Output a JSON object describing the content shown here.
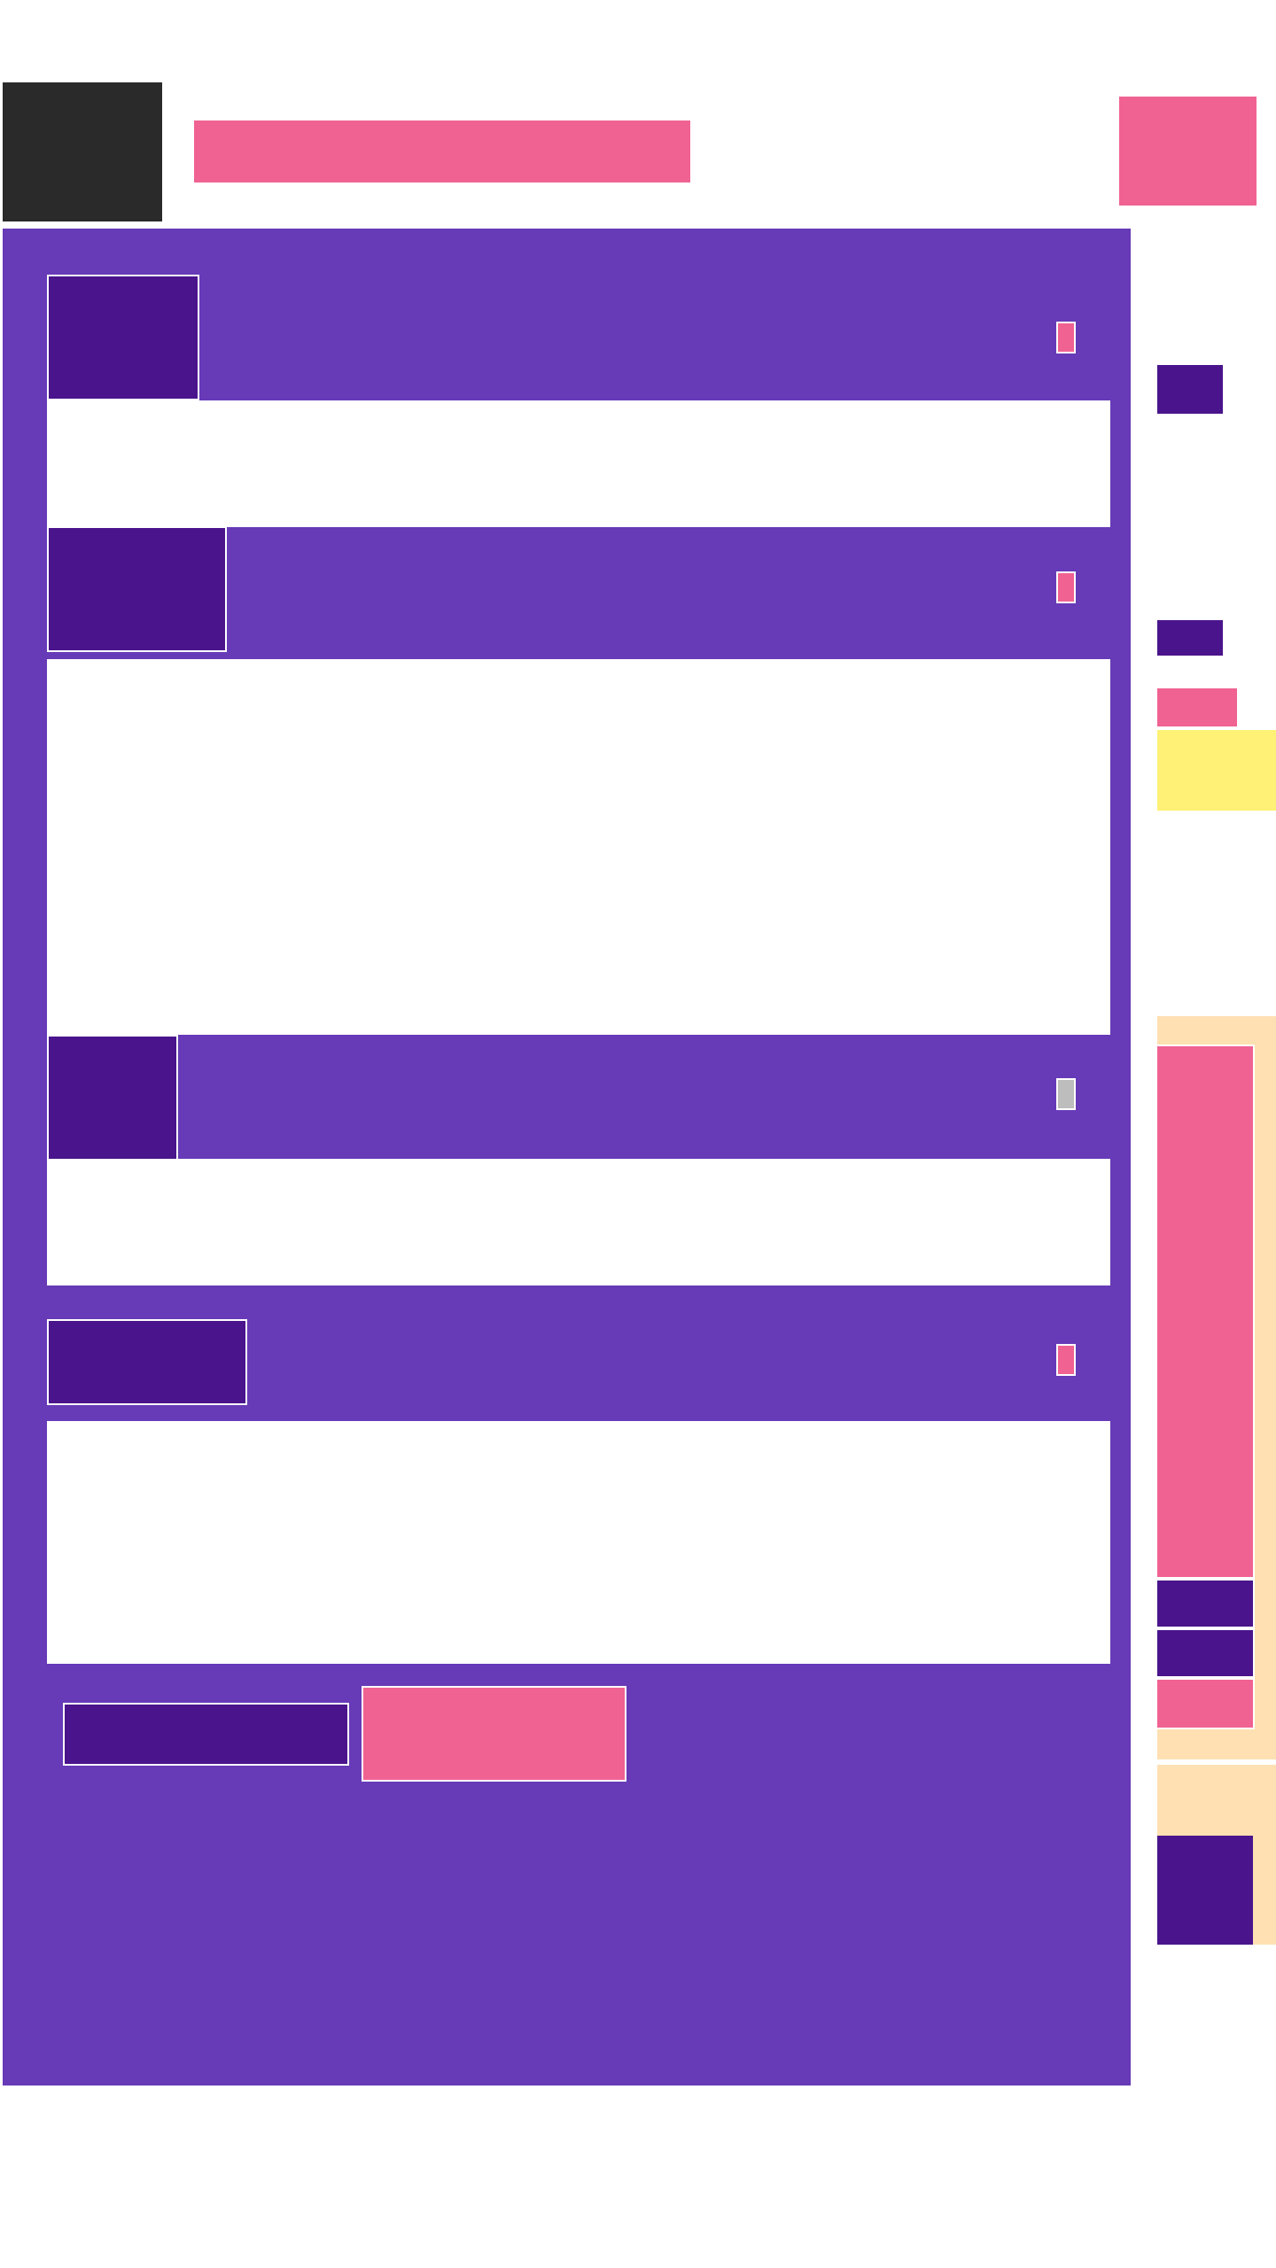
{
  "colors": {
    "primary": "#673ab7",
    "primary_dark": "#4a148c",
    "accent": "#f06292",
    "surface": "#ffffff",
    "dark": "#2a2a2a",
    "highlight": "#fff176",
    "side_panel": "#ffe0b2",
    "disabled": "#bdbdbd"
  },
  "header": {
    "logo": "",
    "title": "",
    "action_label": ""
  },
  "sections": [
    {
      "tab_label": "",
      "body": "",
      "marker_state": "active"
    },
    {
      "tab_label": "",
      "body": "",
      "marker_state": "active"
    },
    {
      "tab_label": "",
      "body": "",
      "marker_state": "disabled"
    },
    {
      "tab_label": "",
      "body": "",
      "marker_state": "active"
    }
  ],
  "actions": {
    "secondary_label": "",
    "primary_label": ""
  },
  "sidebar": {
    "tags": [
      "",
      ""
    ],
    "pink_chip": "",
    "highlight_note": "",
    "panel": {
      "main_block": "",
      "items": [
        "",
        "",
        ""
      ]
    },
    "footer_block": ""
  }
}
